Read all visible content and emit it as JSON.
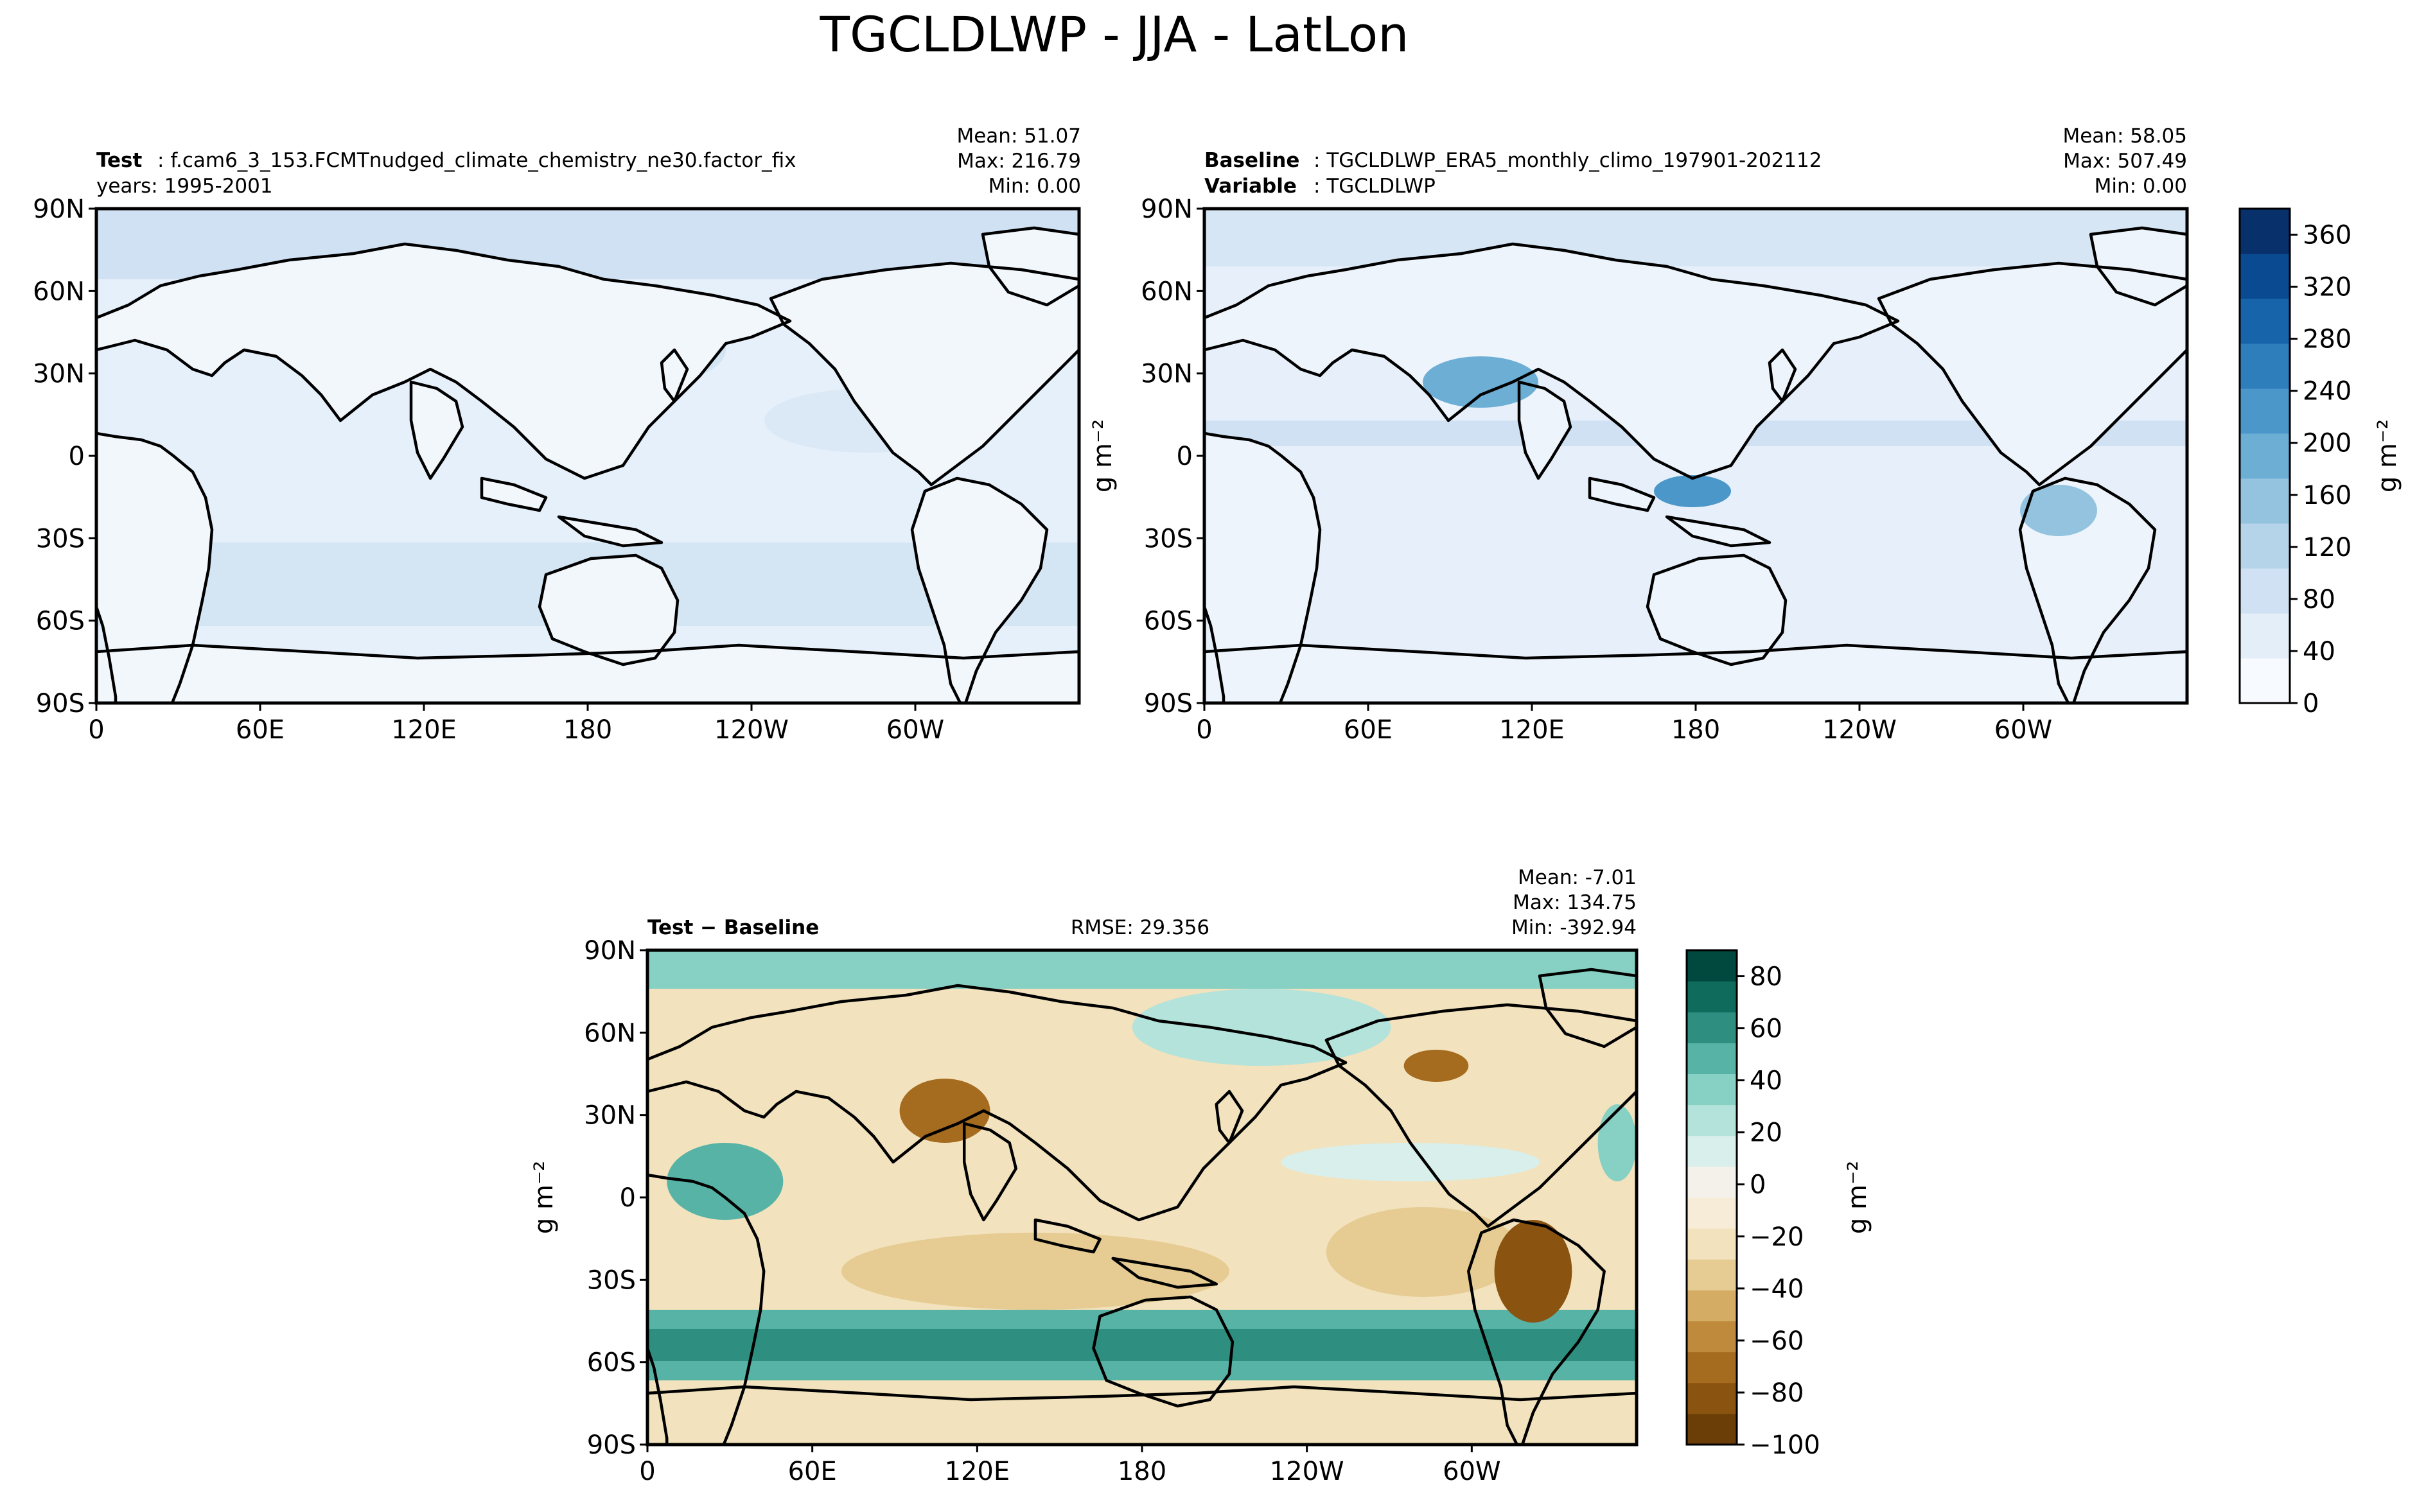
{
  "title": "TGCLDLWP - JJA - LatLon",
  "lat_ticks": [
    "90N",
    "60N",
    "30N",
    "0",
    "30S",
    "60S",
    "90S"
  ],
  "lon_ticks": [
    "0",
    "60E",
    "120E",
    "180",
    "120W",
    "60W"
  ],
  "panels": {
    "test": {
      "label_key": "Test",
      "label_value": "f.cam6_3_153.FCMTnudged_climate_chemistry_ne30.factor_fix",
      "line2": "years: 1995-2001",
      "mean": "Mean: 51.07",
      "max": "Max: 216.79",
      "min": "Min:  0.00"
    },
    "baseline": {
      "label_key": "Baseline",
      "label_value": "TGCLDLWP_ERA5_monthly_climo_197901-202112",
      "line2_key": "Variable",
      "line2_value": "TGCLDLWP",
      "mean": "Mean: 58.05",
      "max": "Max: 507.49",
      "min": "Min:  0.00",
      "ylabel": "g m⁻²"
    },
    "diff": {
      "label": "Test − Baseline",
      "rmse": "RMSE: 29.356",
      "mean": "Mean: -7.01",
      "max": "Max: 134.75",
      "min": "Min: -392.94",
      "ylabel": "g m⁻²"
    }
  },
  "colorbar_top": {
    "label": "g m⁻²",
    "ticks": [
      "0",
      "40",
      "80",
      "120",
      "160",
      "200",
      "240",
      "280",
      "320",
      "360"
    ],
    "colors": [
      "#f7fbff",
      "#e3eef9",
      "#cfe1f2",
      "#b5d4e9",
      "#93c3df",
      "#6daed5",
      "#4b97c9",
      "#2f7ebc",
      "#1864aa",
      "#0a4a90",
      "#08306b"
    ]
  },
  "colorbar_diff": {
    "label": "g m⁻²",
    "ticks": [
      "−100",
      "−80",
      "−60",
      "−40",
      "−20",
      "0",
      "20",
      "40",
      "60",
      "80"
    ],
    "colors": [
      "#6b3d07",
      "#8a5310",
      "#a56b1f",
      "#bf8a3c",
      "#d4ac64",
      "#e6cb92",
      "#f2e2bd",
      "#f6ecd8",
      "#f4f1ea",
      "#d9efeb",
      "#b3e3da",
      "#87d0c4",
      "#57b3a5",
      "#2e8f80",
      "#0f6b5c",
      "#01493e"
    ]
  },
  "chart_data": [
    {
      "type": "heatmap",
      "subtitle": "Test : f.cam6_3_153.FCMTnudged_climate_chemistry_ne30.factor_fix",
      "ylim": [
        -90,
        90
      ],
      "xlim": [
        0,
        360
      ],
      "x_tick_labels": [
        "0",
        "60E",
        "120E",
        "180",
        "120W",
        "60W"
      ],
      "y_tick_labels": [
        "90S",
        "60S",
        "30S",
        "0",
        "30N",
        "60N",
        "90N"
      ],
      "stats": {
        "mean": 51.07,
        "max": 216.79,
        "min": 0.0
      },
      "colorbar_range": [
        0,
        380
      ]
    },
    {
      "type": "heatmap",
      "subtitle": "Baseline : TGCLDLWP_ERA5_monthly_climo_197901-202112",
      "ylim": [
        -90,
        90
      ],
      "xlim": [
        0,
        360
      ],
      "stats": {
        "mean": 58.05,
        "max": 507.49,
        "min": 0.0
      },
      "colorbar_range": [
        0,
        380
      ]
    },
    {
      "type": "heatmap",
      "subtitle": "Test − Baseline",
      "ylim": [
        -90,
        90
      ],
      "xlim": [
        0,
        360
      ],
      "stats": {
        "mean": -7.01,
        "max": 134.75,
        "min": -392.94,
        "rmse": 29.356
      },
      "colorbar_range": [
        -100,
        90
      ]
    }
  ]
}
